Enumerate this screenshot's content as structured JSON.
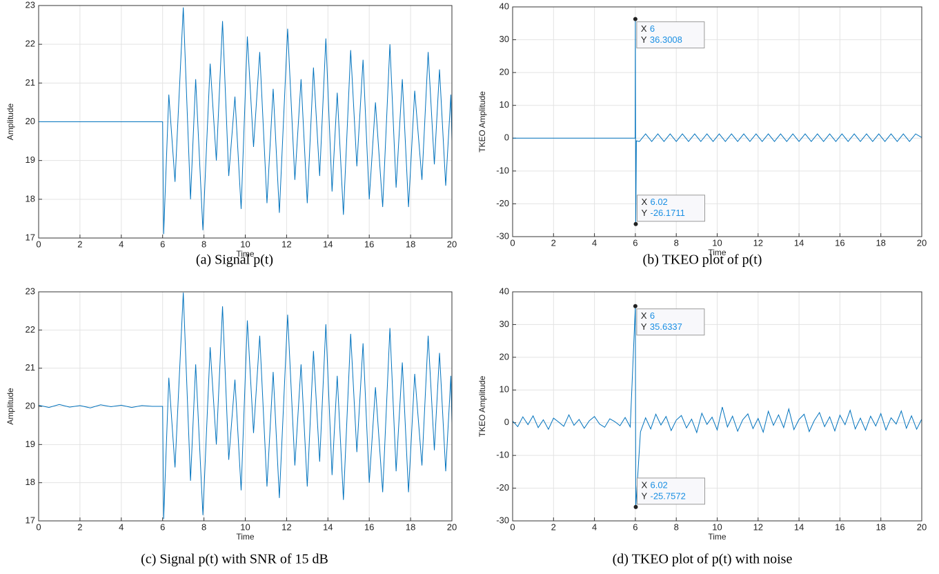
{
  "chart_data": [
    {
      "type": "line",
      "caption": "(a) Signal p(t)",
      "xlabel": "Time",
      "ylabel": "Amplitude",
      "xlim": [
        0,
        20
      ],
      "xticks": [
        0,
        2,
        4,
        6,
        8,
        10,
        12,
        14,
        16,
        18,
        20
      ],
      "ylim": [
        17,
        23
      ],
      "yticks": [
        17,
        18,
        19,
        20,
        21,
        22,
        23
      ],
      "grid": true,
      "series": [
        {
          "color": "#0072bd",
          "x": [
            0,
            6,
            6.05,
            6.3,
            6.6,
            7.0,
            7.35,
            7.6,
            7.95,
            8.3,
            8.6,
            8.9,
            9.2,
            9.5,
            9.8,
            10.1,
            10.4,
            10.7,
            11.05,
            11.35,
            11.65,
            12.05,
            12.4,
            12.7,
            13.0,
            13.3,
            13.6,
            13.9,
            14.2,
            14.45,
            14.75,
            15.1,
            15.4,
            15.7,
            16.0,
            16.3,
            16.65,
            17.0,
            17.3,
            17.6,
            17.9,
            18.2,
            18.55,
            18.85,
            19.15,
            19.4,
            19.7,
            19.95,
            20
          ],
          "values": [
            20,
            20,
            17.1,
            20.7,
            18.45,
            22.95,
            18.0,
            21.1,
            17.2,
            21.5,
            19.0,
            22.6,
            18.6,
            20.65,
            17.75,
            22.2,
            19.35,
            21.8,
            17.9,
            20.85,
            17.65,
            22.4,
            18.5,
            21.1,
            17.9,
            21.4,
            18.6,
            22.15,
            18.2,
            20.75,
            17.6,
            21.85,
            18.85,
            21.6,
            18.0,
            20.5,
            17.8,
            22.0,
            18.3,
            21.1,
            17.8,
            20.8,
            18.5,
            21.8,
            18.9,
            21.35,
            18.35,
            20.7,
            19.5
          ]
        }
      ]
    },
    {
      "type": "line",
      "caption": "(b) TKEO plot of p(t)",
      "xlabel": "Time",
      "ylabel": "TKEO Amplitude",
      "xlim": [
        0,
        20
      ],
      "xticks": [
        0,
        2,
        4,
        6,
        8,
        10,
        12,
        14,
        16,
        18,
        20
      ],
      "ylim": [
        -30,
        40
      ],
      "yticks": [
        -30,
        -20,
        -10,
        0,
        10,
        20,
        30,
        40
      ],
      "grid": true,
      "tip_x_label": "X",
      "tip_y_label": "Y",
      "datatips": [
        {
          "x": 6,
          "y": 36.3008
        },
        {
          "x": 6.02,
          "y": -26.1711
        }
      ],
      "series": [
        {
          "color": "#0072bd",
          "x": [
            0,
            5.99,
            6,
            6.02,
            6.05,
            6.2,
            6.5,
            6.8,
            7.1,
            7.4,
            7.7,
            8.0,
            8.3,
            8.6,
            8.9,
            9.2,
            9.5,
            9.8,
            10.1,
            10.4,
            10.7,
            11.0,
            11.3,
            11.6,
            11.9,
            12.2,
            12.5,
            12.8,
            13.1,
            13.4,
            13.7,
            14.0,
            14.3,
            14.6,
            14.9,
            15.2,
            15.5,
            15.8,
            16.1,
            16.4,
            16.7,
            17.0,
            17.3,
            17.6,
            17.9,
            18.2,
            18.5,
            18.8,
            19.1,
            19.4,
            19.7,
            20
          ],
          "values": [
            0,
            0,
            36.3008,
            -26.1711,
            -0.8,
            -1.0,
            1.3,
            -1.0,
            1.3,
            -1.0,
            1.3,
            -1.0,
            1.3,
            -1.0,
            1.3,
            -1.0,
            1.3,
            -1.0,
            1.3,
            -1.0,
            1.3,
            -1.0,
            1.3,
            -1.0,
            1.3,
            -1.0,
            1.3,
            -1.0,
            1.3,
            -1.0,
            1.3,
            -1.0,
            1.3,
            -1.0,
            1.3,
            -1.0,
            1.3,
            -1.0,
            1.3,
            -1.0,
            1.3,
            -1.0,
            1.3,
            -1.0,
            1.3,
            -1.0,
            1.3,
            -1.0,
            1.3,
            -1.0,
            1.3,
            0.2
          ]
        }
      ]
    },
    {
      "type": "line",
      "caption": "(c) Signal p(t) with SNR of 15 dB",
      "xlabel": "Time",
      "ylabel": "Amplitude",
      "xlim": [
        0,
        20
      ],
      "xticks": [
        0,
        2,
        4,
        6,
        8,
        10,
        12,
        14,
        16,
        18,
        20
      ],
      "ylim": [
        17,
        23
      ],
      "yticks": [
        17,
        18,
        19,
        20,
        21,
        22,
        23
      ],
      "grid": true,
      "series": [
        {
          "color": "#0072bd",
          "x": [
            0,
            0.5,
            1,
            1.5,
            2,
            2.5,
            3,
            3.5,
            4,
            4.5,
            5,
            5.5,
            6,
            6.05,
            6.3,
            6.6,
            7.0,
            7.35,
            7.6,
            7.95,
            8.3,
            8.6,
            8.9,
            9.2,
            9.5,
            9.8,
            10.1,
            10.4,
            10.7,
            11.05,
            11.35,
            11.65,
            12.05,
            12.4,
            12.7,
            13.0,
            13.3,
            13.6,
            13.9,
            14.2,
            14.45,
            14.75,
            15.1,
            15.4,
            15.7,
            16.0,
            16.3,
            16.65,
            17.0,
            17.3,
            17.6,
            17.9,
            18.2,
            18.55,
            18.85,
            19.15,
            19.4,
            19.7,
            19.95,
            20
          ],
          "values": [
            20.03,
            19.97,
            20.05,
            19.98,
            20.02,
            19.96,
            20.04,
            19.99,
            20.03,
            19.97,
            20.02,
            20.0,
            20.0,
            17.05,
            20.75,
            18.4,
            22.98,
            18.05,
            21.1,
            17.15,
            21.55,
            19.0,
            22.62,
            18.6,
            20.7,
            17.8,
            22.25,
            19.3,
            21.85,
            17.9,
            20.9,
            17.6,
            22.4,
            18.45,
            21.1,
            17.9,
            21.45,
            18.55,
            22.15,
            18.2,
            20.8,
            17.55,
            21.9,
            18.8,
            21.65,
            18.0,
            20.5,
            17.75,
            22.05,
            18.3,
            21.15,
            17.75,
            20.85,
            18.45,
            21.85,
            18.85,
            21.4,
            18.3,
            20.8,
            19.55
          ]
        }
      ]
    },
    {
      "type": "line",
      "caption": "(d) TKEO plot of p(t) with noise",
      "xlabel": "Time",
      "ylabel": "TKEO Amplitude",
      "xlim": [
        0,
        20
      ],
      "xticks": [
        0,
        2,
        4,
        6,
        8,
        10,
        12,
        14,
        16,
        18,
        20
      ],
      "ylim": [
        -30,
        40
      ],
      "yticks": [
        -30,
        -20,
        -10,
        0,
        10,
        20,
        30,
        40
      ],
      "grid": true,
      "tip_x_label": "X",
      "tip_y_label": "Y",
      "datatips": [
        {
          "x": 6,
          "y": 35.6337
        },
        {
          "x": 6.02,
          "y": -25.7572
        }
      ],
      "series": [
        {
          "color": "#0072bd",
          "x": [
            0,
            0.25,
            0.5,
            0.75,
            1,
            1.25,
            1.5,
            1.75,
            2,
            2.25,
            2.5,
            2.75,
            3,
            3.25,
            3.5,
            3.75,
            4,
            4.25,
            4.5,
            4.75,
            5,
            5.25,
            5.5,
            5.75,
            6,
            6.02,
            6.25,
            6.5,
            6.75,
            7,
            7.25,
            7.5,
            7.75,
            8,
            8.25,
            8.5,
            8.75,
            9,
            9.25,
            9.5,
            9.75,
            10,
            10.25,
            10.5,
            10.75,
            11,
            11.25,
            11.5,
            11.75,
            12,
            12.25,
            12.5,
            12.75,
            13,
            13.25,
            13.5,
            13.75,
            14,
            14.25,
            14.5,
            14.75,
            15,
            15.25,
            15.5,
            15.75,
            16,
            16.25,
            16.5,
            16.75,
            17,
            17.25,
            17.5,
            17.75,
            18,
            18.25,
            18.5,
            18.75,
            19,
            19.25,
            19.5,
            19.75,
            20
          ],
          "values": [
            0.5,
            -1.2,
            1.8,
            -0.6,
            2.1,
            -1.5,
            0.9,
            -2.0,
            1.4,
            0.2,
            -1.1,
            2.4,
            -0.8,
            1.0,
            -1.7,
            0.6,
            1.9,
            -0.4,
            -1.4,
            1.2,
            0.3,
            -0.9,
            1.6,
            -1.3,
            35.6337,
            -25.7572,
            -2.8,
            1.5,
            -1.9,
            2.6,
            -0.7,
            1.9,
            -2.4,
            0.8,
            2.2,
            -1.6,
            1.1,
            -3.0,
            2.9,
            -0.5,
            1.7,
            -2.2,
            4.8,
            -1.3,
            2.0,
            -2.6,
            0.9,
            2.7,
            -1.8,
            1.3,
            -2.9,
            3.5,
            -0.8,
            2.4,
            -1.5,
            4.2,
            -2.1,
            1.0,
            2.6,
            -2.7,
            0.7,
            3.1,
            -1.2,
            1.8,
            -2.5,
            2.3,
            -0.6,
            3.8,
            -1.9,
            1.4,
            -2.3,
            2.0,
            -1.0,
            2.8,
            -2.2,
            1.5,
            -0.4,
            3.6,
            -1.7,
            2.1,
            -2.0,
            1.1
          ]
        }
      ]
    }
  ]
}
